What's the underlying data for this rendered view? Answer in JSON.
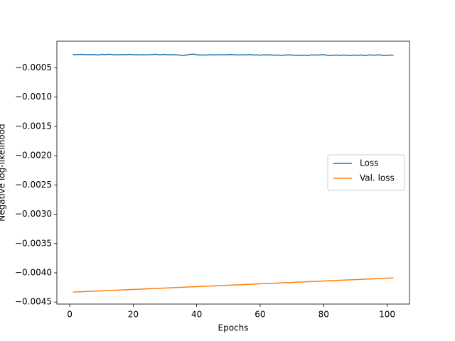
{
  "chart_data": {
    "type": "line",
    "x_label": "Epochs",
    "y_label": "Negative log-likelihood",
    "x": [
      1,
      2,
      3,
      4,
      5,
      6,
      7,
      8,
      9,
      10,
      11,
      12,
      13,
      14,
      15,
      16,
      17,
      18,
      19,
      20,
      21,
      22,
      23,
      24,
      25,
      26,
      27,
      28,
      29,
      30,
      31,
      32,
      33,
      34,
      35,
      36,
      37,
      38,
      39,
      40,
      41,
      42,
      43,
      44,
      45,
      46,
      47,
      48,
      49,
      50,
      51,
      52,
      53,
      54,
      55,
      56,
      57,
      58,
      59,
      60,
      61,
      62,
      63,
      64,
      65,
      66,
      67,
      68,
      69,
      70,
      71,
      72,
      73,
      74,
      75,
      76,
      77,
      78,
      79,
      80,
      81,
      82,
      83,
      84,
      85,
      86,
      87,
      88,
      89,
      90,
      91,
      92,
      93,
      94,
      95,
      96,
      97,
      98,
      99,
      100,
      101,
      102
    ],
    "series": [
      {
        "name": "Loss",
        "color": "#1f77b4",
        "values": [
          -0.000275,
          -0.000274,
          -0.000273,
          -0.00027,
          -0.000276,
          -0.000275,
          -0.000274,
          -0.000276,
          -0.000281,
          -0.000271,
          -0.000276,
          -0.00027,
          -0.000272,
          -0.000279,
          -0.000276,
          -0.000275,
          -0.000273,
          -0.000277,
          -0.00027,
          -0.000279,
          -0.000276,
          -0.00028,
          -0.000276,
          -0.000278,
          -0.000277,
          -0.000274,
          -0.000269,
          -0.000278,
          -0.000277,
          -0.000272,
          -0.000279,
          -0.000275,
          -0.000278,
          -0.00028,
          -0.000285,
          -0.000289,
          -0.000279,
          -0.00027,
          -0.000268,
          -0.000277,
          -0.000284,
          -0.00028,
          -0.000283,
          -0.000276,
          -0.000278,
          -0.000281,
          -0.000277,
          -0.000276,
          -0.000279,
          -0.000275,
          -0.000273,
          -0.000277,
          -0.000283,
          -0.000276,
          -0.00028,
          -0.000279,
          -0.000274,
          -0.000282,
          -0.00028,
          -0.000284,
          -0.000278,
          -0.000281,
          -0.000279,
          -0.000283,
          -0.000286,
          -0.000282,
          -0.000288,
          -0.000281,
          -0.00028,
          -0.000283,
          -0.000286,
          -0.000284,
          -0.00029,
          -0.000283,
          -0.000291,
          -0.00028,
          -0.000281,
          -0.000283,
          -0.000278,
          -0.000276,
          -0.000284,
          -0.00029,
          -0.000286,
          -0.000283,
          -0.000289,
          -0.000282,
          -0.000284,
          -0.00029,
          -0.000286,
          -0.000283,
          -0.000288,
          -0.000281,
          -0.000293,
          -0.000282,
          -0.00028,
          -0.000286,
          -0.000279,
          -0.000281,
          -0.00029,
          -0.000287,
          -0.000283,
          -0.000285
        ]
      },
      {
        "name": "Val. loss",
        "color": "#ff7f0e",
        "values": [
          -0.00433,
          -0.0043276,
          -0.0043252,
          -0.0043228,
          -0.0043204,
          -0.004318,
          -0.0043156,
          -0.0043132,
          -0.0043108,
          -0.0043084,
          -0.004306,
          -0.0043036,
          -0.0043012,
          -0.0042988,
          -0.0042964,
          -0.004294,
          -0.0042916,
          -0.0042892,
          -0.0042868,
          -0.0042844,
          -0.004282,
          -0.0042796,
          -0.0042772,
          -0.0042748,
          -0.0042724,
          -0.00427,
          -0.0042676,
          -0.0042652,
          -0.0042628,
          -0.0042604,
          -0.004258,
          -0.0042556,
          -0.0042532,
          -0.0042508,
          -0.0042484,
          -0.004246,
          -0.0042436,
          -0.0042412,
          -0.0042388,
          -0.0042364,
          -0.004234,
          -0.0042316,
          -0.0042292,
          -0.0042268,
          -0.0042244,
          -0.004222,
          -0.0042196,
          -0.0042172,
          -0.0042148,
          -0.0042124,
          -0.00421,
          -0.0042076,
          -0.0042052,
          -0.0042028,
          -0.0042004,
          -0.004198,
          -0.0041956,
          -0.0041932,
          -0.0041908,
          -0.0041884,
          -0.004186,
          -0.0041836,
          -0.0041812,
          -0.0041788,
          -0.0041764,
          -0.004174,
          -0.0041716,
          -0.0041692,
          -0.0041668,
          -0.0041644,
          -0.004162,
          -0.0041596,
          -0.0041572,
          -0.0041548,
          -0.0041524,
          -0.00415,
          -0.0041476,
          -0.0041452,
          -0.0041428,
          -0.0041404,
          -0.004138,
          -0.0041356,
          -0.0041332,
          -0.0041308,
          -0.0041284,
          -0.004126,
          -0.0041236,
          -0.0041212,
          -0.0041188,
          -0.0041164,
          -0.004114,
          -0.0041116,
          -0.0041092,
          -0.0041068,
          -0.0041044,
          -0.004102,
          -0.0040996,
          -0.0040972,
          -0.0040948,
          -0.0040924,
          -0.00409,
          -0.0040876
        ]
      }
    ],
    "xlim": [
      -4.05,
      107.05
    ],
    "xticks": [
      0,
      20,
      40,
      60,
      80,
      100
    ],
    "ylim": [
      -0.004534,
      -4.6e-05
    ],
    "yticks": [
      {
        "value": -0.0045,
        "label": "−0.0045"
      },
      {
        "value": -0.004,
        "label": "−0.0040"
      },
      {
        "value": -0.0035,
        "label": "−0.0035"
      },
      {
        "value": -0.003,
        "label": "−0.0030"
      },
      {
        "value": -0.0025,
        "label": "−0.0025"
      },
      {
        "value": -0.002,
        "label": "−0.0020"
      },
      {
        "value": -0.0015,
        "label": "−0.0015"
      },
      {
        "value": -0.001,
        "label": "−0.0010"
      },
      {
        "value": -0.0005,
        "label": "−0.0005"
      }
    ],
    "grid": false,
    "legend": "center right"
  }
}
